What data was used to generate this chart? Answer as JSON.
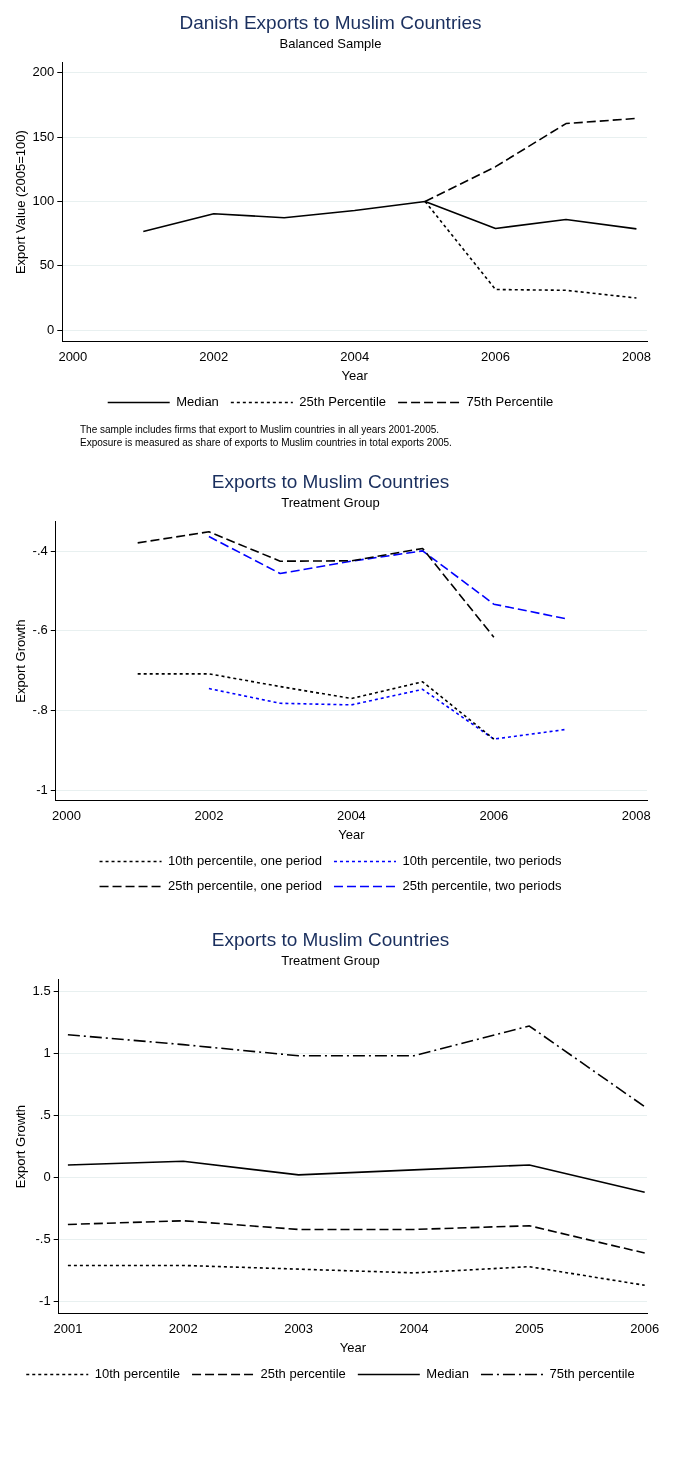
{
  "chart_data": [
    {
      "type": "line",
      "title": "Danish Exports to Muslim Countries",
      "subtitle": "Balanced Sample",
      "xlabel": "Year",
      "ylabel": "Export Value (2005=100)",
      "xlim": [
        1999.85,
        2008.15
      ],
      "xticks": [
        2000,
        2002,
        2004,
        2006,
        2008
      ],
      "ylim": [
        -9,
        208
      ],
      "yticks": [
        0,
        50,
        100,
        150,
        200
      ],
      "grid": "y",
      "legend": "bottom",
      "marker": "none",
      "series": [
        {
          "name": "Median",
          "color": "#000000",
          "line_style": "solid",
          "x": [
            2001,
            2002,
            2003,
            2004,
            2005,
            2006,
            2007,
            2008
          ],
          "values": [
            76.7,
            90.4,
            87.4,
            93,
            100,
            79,
            86,
            78.7
          ]
        },
        {
          "name": "25th Percentile",
          "color": "#000000",
          "line_style": "dotted",
          "x": [
            2005,
            2006,
            2007,
            2008
          ],
          "values": [
            100,
            31.6,
            31,
            25
          ]
        },
        {
          "name": "75th Percentile",
          "color": "#000000",
          "line_style": "dashed",
          "x": [
            2005,
            2006,
            2007,
            2008
          ],
          "values": [
            100,
            127,
            160.5,
            164.5
          ]
        }
      ],
      "annotations": [
        "The sample includes firms that export to Muslim countries in all years 2001-2005.",
        "Exposure is measured as share of exports to Muslim countries in total exports 2005."
      ]
    },
    {
      "type": "line",
      "title": "Exports to Muslim Countries",
      "subtitle": "Treatment Group",
      "xlabel": "Year",
      "ylabel": "Export Growth",
      "xlim": [
        1999.85,
        2008.15
      ],
      "xticks": [
        2000,
        2002,
        2004,
        2006,
        2008
      ],
      "ylim": [
        -1.027,
        -0.325
      ],
      "yticks": [
        {
          "value": -0.4,
          "label": "-.4"
        },
        {
          "value": -0.6,
          "label": "-.6"
        },
        {
          "value": -0.8,
          "label": "-.8"
        },
        {
          "value": -1,
          "label": "-1"
        }
      ],
      "grid": "y",
      "legend": "bottom",
      "marker": "none",
      "series": [
        {
          "name": "10th percentile, one period",
          "color": "#000000",
          "line_style": "dotted",
          "x": [
            2001,
            2002,
            2003,
            2004,
            2005,
            2006
          ],
          "values": [
            -0.708,
            -0.708,
            -0.74,
            -0.77,
            -0.728,
            -0.872
          ]
        },
        {
          "name": "10th percentile, two periods",
          "color": "#0000ff",
          "line_style": "dotted",
          "x": [
            2002,
            2003,
            2004,
            2005,
            2006,
            2007
          ],
          "values": [
            -0.745,
            -0.782,
            -0.786,
            -0.747,
            -0.872,
            -0.848
          ]
        },
        {
          "name": "25th percentile, one period",
          "color": "#000000",
          "line_style": "dashed",
          "x": [
            2001,
            2002,
            2003,
            2004,
            2005,
            2006
          ],
          "values": [
            -0.379,
            -0.351,
            -0.425,
            -0.424,
            -0.393,
            -0.616
          ]
        },
        {
          "name": "25th percentile, two periods",
          "color": "#0000ff",
          "line_style": "dashed",
          "x": [
            2002,
            2003,
            2004,
            2005,
            2006,
            2007
          ],
          "values": [
            -0.363,
            -0.456,
            -0.425,
            -0.399,
            -0.533,
            -0.569
          ]
        }
      ]
    },
    {
      "type": "line",
      "title": "Exports to Muslim Countries",
      "subtitle": "Treatment Group",
      "xlabel": "Year",
      "ylabel": "Export Growth",
      "xlim": [
        2000.92,
        2006.02
      ],
      "xticks": [
        2001,
        2002,
        2003,
        2004,
        2005,
        2006
      ],
      "ylim": [
        -1.1,
        1.596
      ],
      "yticks": [
        {
          "value": 1.5,
          "label": "1.5"
        },
        {
          "value": 1,
          "label": "1"
        },
        {
          "value": 0.5,
          "label": ".5"
        },
        {
          "value": 0,
          "label": "0"
        },
        {
          "value": -0.5,
          "label": "-.5"
        },
        {
          "value": -1,
          "label": "-1"
        }
      ],
      "grid": "y",
      "legend": "bottom",
      "marker": "none",
      "series": [
        {
          "name": "10th percentile",
          "color": "#000000",
          "line_style": "dotted",
          "x": [
            2001,
            2002,
            2003,
            2004,
            2005,
            2006
          ],
          "values": [
            -0.71,
            -0.71,
            -0.74,
            -0.77,
            -0.72,
            -0.87
          ]
        },
        {
          "name": "25th percentile",
          "color": "#000000",
          "line_style": "dashed",
          "x": [
            2001,
            2002,
            2003,
            2004,
            2005,
            2006
          ],
          "values": [
            -0.38,
            -0.35,
            -0.42,
            -0.42,
            -0.39,
            -0.61
          ]
        },
        {
          "name": "Median",
          "color": "#000000",
          "line_style": "solid",
          "x": [
            2001,
            2002,
            2003,
            2004,
            2005,
            2006
          ],
          "values": [
            0.1,
            0.13,
            0.02,
            0.06,
            0.1,
            -0.12
          ]
        },
        {
          "name": "75th percentile",
          "color": "#000000",
          "line_style": "dashdot",
          "x": [
            2001,
            2002,
            2003,
            2004,
            2005,
            2006
          ],
          "values": [
            1.15,
            1.07,
            0.98,
            0.98,
            1.22,
            0.57
          ]
        }
      ]
    }
  ]
}
